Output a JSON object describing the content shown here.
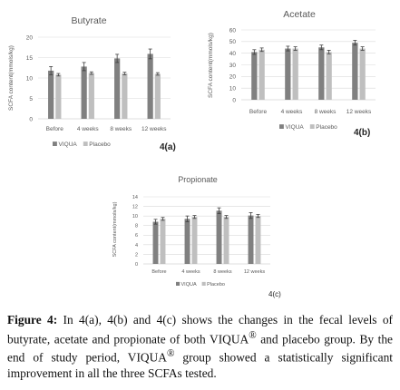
{
  "colors": {
    "viqua": "#808080",
    "placebo": "#bfbfbf",
    "axis_text": "#595959",
    "grid": "#d9d9d9",
    "error_bar": "#404040"
  },
  "chart_data": [
    {
      "type": "bar",
      "title": "Butyrate",
      "panel_label": "4(a)",
      "ylabel": "SCFA content(mmols/kg)",
      "xlabel": "",
      "categories": [
        "Before",
        "4 weeks",
        "8 weeks",
        "12 weeks"
      ],
      "series": [
        {
          "name": "VIQUA",
          "values": [
            11.8,
            12.8,
            14.8,
            15.9
          ],
          "errors": [
            1.0,
            1.0,
            1.0,
            1.2
          ]
        },
        {
          "name": "Placebo",
          "values": [
            10.8,
            11.2,
            11.1,
            11.0
          ],
          "errors": [
            0.3,
            0.3,
            0.3,
            0.3
          ]
        }
      ],
      "ylim": [
        0,
        20
      ],
      "yticks": [
        0,
        5,
        10,
        15,
        20
      ],
      "grid": true,
      "legend": "bottom"
    },
    {
      "type": "bar",
      "title": "Acetate",
      "panel_label": "4(b)",
      "ylabel": "SCFA content(mmols/kg)",
      "xlabel": "",
      "categories": [
        "Before",
        "4 weeks",
        "8 weeks",
        "12 weeks"
      ],
      "series": [
        {
          "name": "VIQUA",
          "values": [
            41,
            44,
            45,
            49
          ],
          "errors": [
            2,
            2,
            2,
            2
          ]
        },
        {
          "name": "Placebo",
          "values": [
            43,
            44,
            41,
            44
          ],
          "errors": [
            1.5,
            1.5,
            1.5,
            1.5
          ]
        }
      ],
      "ylim": [
        0,
        60
      ],
      "yticks": [
        0,
        10,
        20,
        30,
        40,
        50,
        60
      ],
      "grid": true,
      "legend": "bottom"
    },
    {
      "type": "bar",
      "title": "Propionate",
      "panel_label": "4(c)",
      "ylabel": "SCFA content(mmols/kg)",
      "xlabel": "",
      "categories": [
        "Before",
        "4 weeks",
        "8 weeks",
        "12 weeks"
      ],
      "series": [
        {
          "name": "VIQUA",
          "values": [
            8.8,
            9.4,
            11.1,
            10.1
          ],
          "errors": [
            0.5,
            0.6,
            0.6,
            0.6
          ]
        },
        {
          "name": "Placebo",
          "values": [
            9.4,
            9.8,
            9.8,
            10.0
          ],
          "errors": [
            0.3,
            0.3,
            0.3,
            0.3
          ]
        }
      ],
      "ylim": [
        0,
        14
      ],
      "yticks": [
        0,
        2,
        4,
        6,
        8,
        10,
        12,
        14
      ],
      "grid": true,
      "legend": "bottom"
    }
  ],
  "caption": {
    "label": "Figure 4:",
    "part1": " In 4(a), 4(b) and 4(c) shows the changes in the fecal levels of butyrate, acetate and propionate of both VIQUA",
    "reg1": "®",
    "part2": " and placebo group. By the end of study period, VIQUA",
    "reg2": "®",
    "part3": " group showed a statistically significant improvement in all the three SCFAs tested."
  }
}
